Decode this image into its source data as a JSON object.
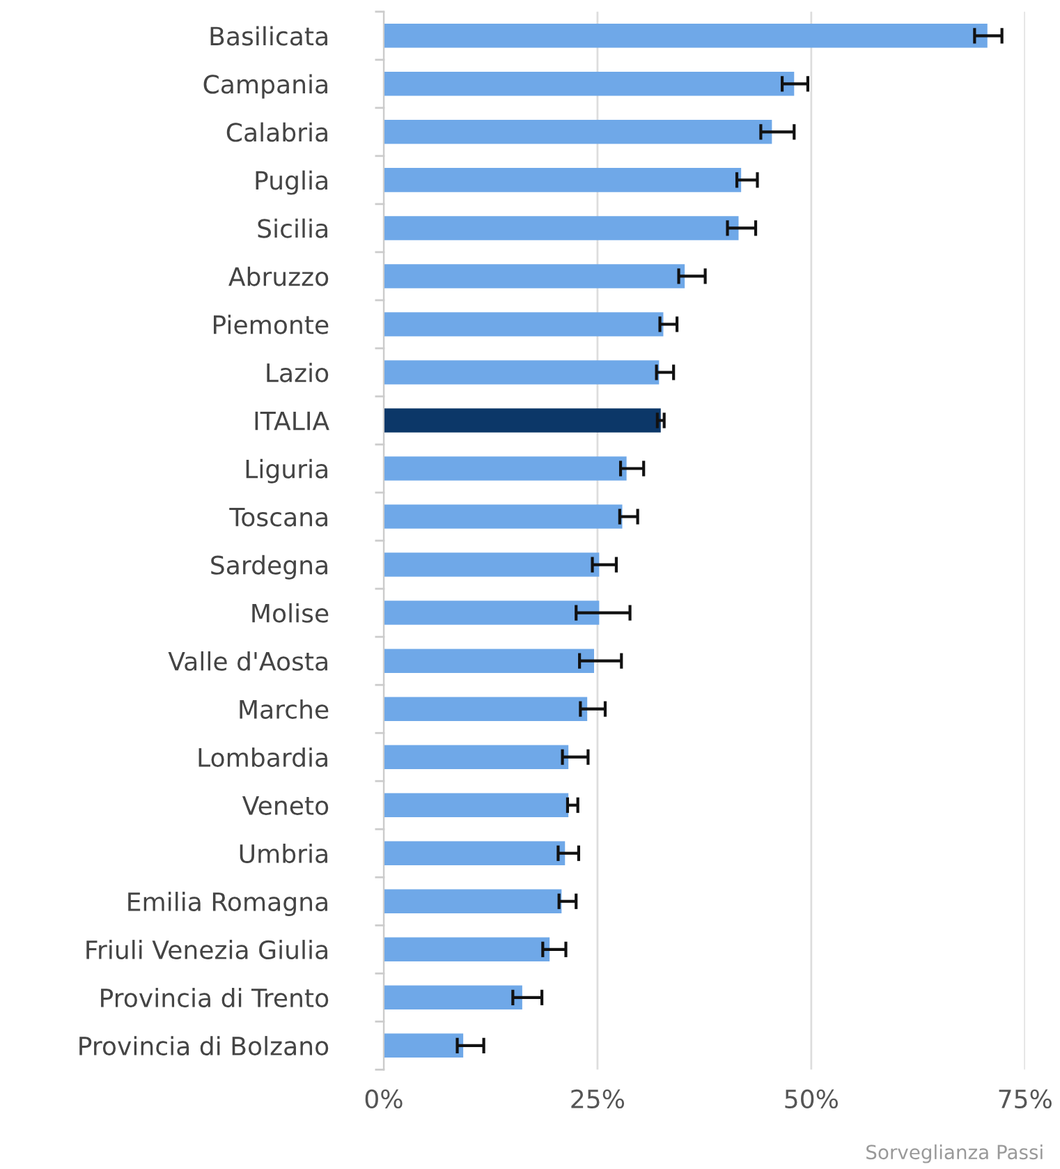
{
  "chart_data": {
    "type": "bar",
    "orientation": "horizontal",
    "categories": [
      "Basilicata",
      "Campania",
      "Calabria",
      "Puglia",
      "Sicilia",
      "Abruzzo",
      "Piemonte",
      "Lazio",
      "ITALIA",
      "Liguria",
      "Toscana",
      "Sardegna",
      "Molise",
      "Valle d'Aosta",
      "Marche",
      "Lombardia",
      "Veneto",
      "Umbria",
      "Emilia Romagna",
      "Friuli Venezia Giulia",
      "Provincia di Trento",
      "Provincia di Bolzano"
    ],
    "values": [
      70.6,
      48.0,
      45.4,
      41.8,
      41.5,
      35.2,
      32.7,
      32.2,
      32.4,
      28.4,
      27.9,
      25.2,
      25.2,
      24.6,
      23.8,
      21.6,
      21.6,
      21.2,
      20.8,
      19.4,
      16.2,
      9.3
    ],
    "colors": [
      "#6fa8e8",
      "#6fa8e8",
      "#6fa8e8",
      "#6fa8e8",
      "#6fa8e8",
      "#6fa8e8",
      "#6fa8e8",
      "#6fa8e8",
      "#0c3768",
      "#6fa8e8",
      "#6fa8e8",
      "#6fa8e8",
      "#6fa8e8",
      "#6fa8e8",
      "#6fa8e8",
      "#6fa8e8",
      "#6fa8e8",
      "#6fa8e8",
      "#6fa8e8",
      "#6fa8e8",
      "#6fa8e8",
      "#6fa8e8"
    ],
    "errors": [
      [
        69.1,
        72.3
      ],
      [
        46.6,
        49.6
      ],
      [
        44.1,
        48.0
      ],
      [
        41.3,
        43.7
      ],
      [
        40.2,
        43.5
      ],
      [
        34.5,
        37.6
      ],
      [
        32.3,
        34.3
      ],
      [
        31.9,
        33.9
      ],
      [
        32.0,
        32.8
      ],
      [
        27.7,
        30.4
      ],
      [
        27.6,
        29.7
      ],
      [
        24.4,
        27.2
      ],
      [
        22.5,
        28.8
      ],
      [
        22.9,
        27.8
      ],
      [
        23.0,
        25.9
      ],
      [
        20.9,
        23.9
      ],
      [
        21.5,
        22.7
      ],
      [
        20.4,
        22.8
      ],
      [
        20.5,
        22.5
      ],
      [
        18.6,
        21.3
      ],
      [
        15.1,
        18.5
      ],
      [
        8.6,
        11.7
      ]
    ],
    "xlim": [
      0,
      75
    ],
    "xticks": [
      {
        "value": 0,
        "label": "0%"
      },
      {
        "value": 25,
        "label": "25%"
      },
      {
        "value": 50,
        "label": "50%"
      },
      {
        "value": 75,
        "label": "75%"
      }
    ],
    "grid": "x",
    "annotations": [
      "Sorveglianza Passi"
    ]
  }
}
